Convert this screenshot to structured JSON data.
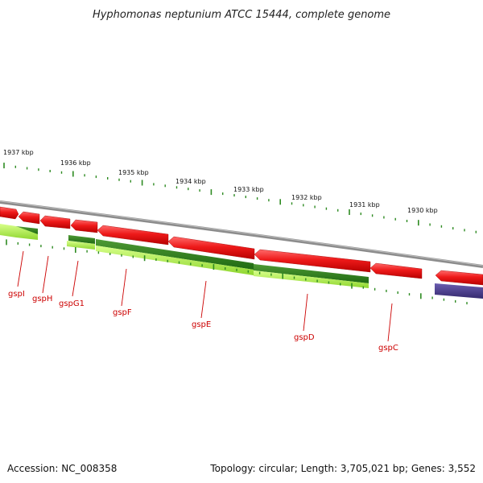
{
  "title": "Hyphomonas neptunium ATCC 15444, complete genome",
  "footer": {
    "accession": "Accession: NC_008358",
    "summary": "Topology: circular; Length: 3,705,021 bp; Genes: 3,552"
  },
  "colors": {
    "backbone": "#8c8c8c",
    "forward_cds": "#e31010",
    "forward_cds_light": "#ff5c5c",
    "dark_green_feature": "#2e7d1a",
    "light_green_feature": "#a6e84a",
    "purple_feature": "#4b3d8f",
    "tick": "#2e8b22",
    "gene_label": "#cc0000"
  },
  "ruler": {
    "unit": "kbp",
    "labels": [
      "1937 kbp",
      "1936 kbp",
      "1935 kbp",
      "1934 kbp",
      "1933 kbp",
      "1932 kbp",
      "1931 kbp",
      "1930 kbp"
    ]
  },
  "genes": [
    {
      "name": "gspI"
    },
    {
      "name": "gspH"
    },
    {
      "name": "gspG1"
    },
    {
      "name": "gspF"
    },
    {
      "name": "gspE"
    },
    {
      "name": "gspD"
    },
    {
      "name": "gspC"
    }
  ]
}
